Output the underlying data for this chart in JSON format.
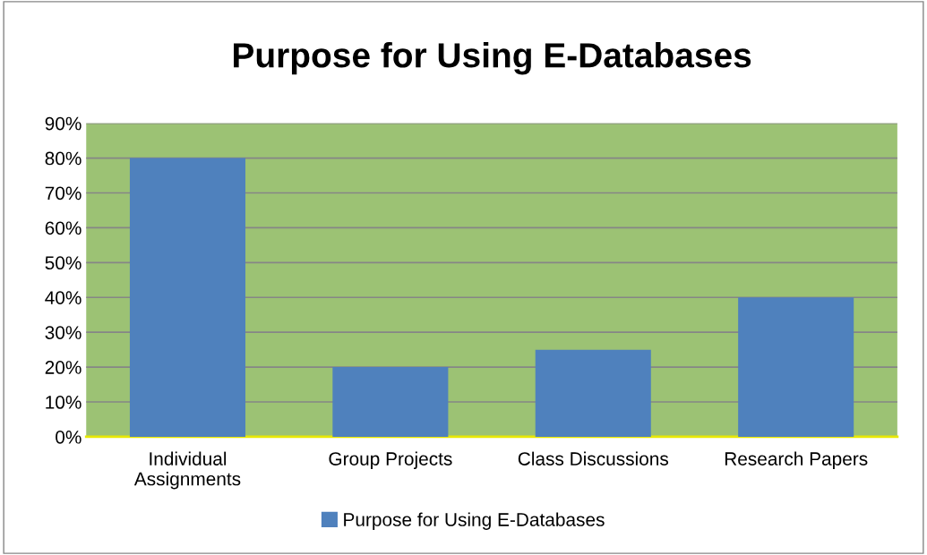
{
  "chart_data": {
    "type": "bar",
    "title": "Purpose for Using E-Databases",
    "categories": [
      "Individual\nAssignments",
      "Group Projects",
      "Class Discussions",
      "Research Papers"
    ],
    "series": [
      {
        "name": "Purpose for Using E-Databases",
        "color": "#4f81bd",
        "values": [
          80,
          20,
          25,
          40
        ]
      }
    ],
    "ylim": [
      0,
      90
    ],
    "yticks": [
      {
        "value": 0,
        "label": "0%"
      },
      {
        "value": 10,
        "label": "10%"
      },
      {
        "value": 20,
        "label": "20%"
      },
      {
        "value": 30,
        "label": "30%"
      },
      {
        "value": 40,
        "label": "40%"
      },
      {
        "value": 50,
        "label": "50%"
      },
      {
        "value": 60,
        "label": "60%"
      },
      {
        "value": 70,
        "label": "70%"
      },
      {
        "value": 80,
        "label": "80%"
      },
      {
        "value": 90,
        "label": "90%"
      }
    ],
    "grid": "y",
    "legend": "bottom"
  }
}
